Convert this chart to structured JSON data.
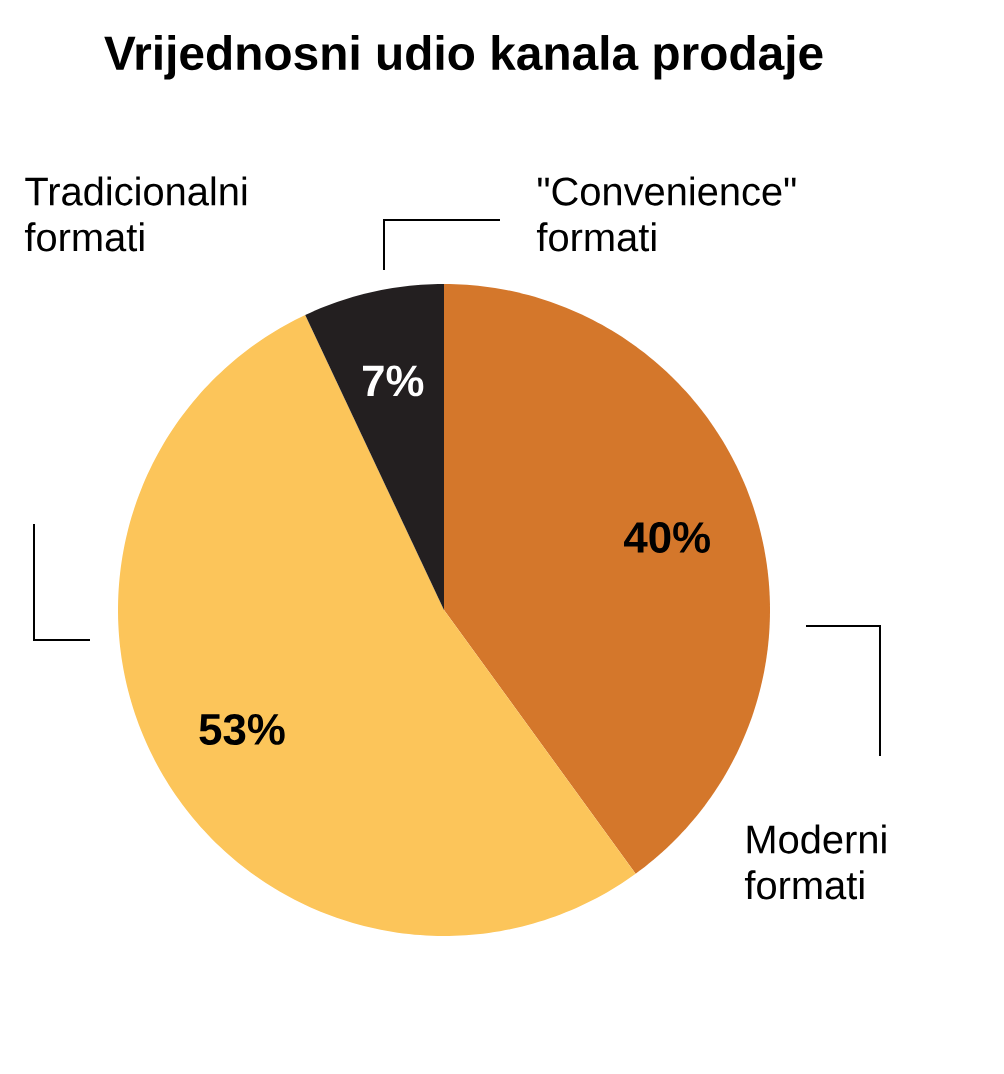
{
  "chart_data": {
    "type": "pie",
    "title": "Vrijednosni udio kanala prodaje",
    "categories": [
      "Moderni formati",
      "Tradicionalni formati",
      "\"Convenience\" formati"
    ],
    "values": [
      40,
      53,
      7
    ],
    "colors": [
      "#d4772b",
      "#fcc55a",
      "#231f20"
    ],
    "value_labels": [
      "40%",
      "53%",
      "7%"
    ]
  }
}
